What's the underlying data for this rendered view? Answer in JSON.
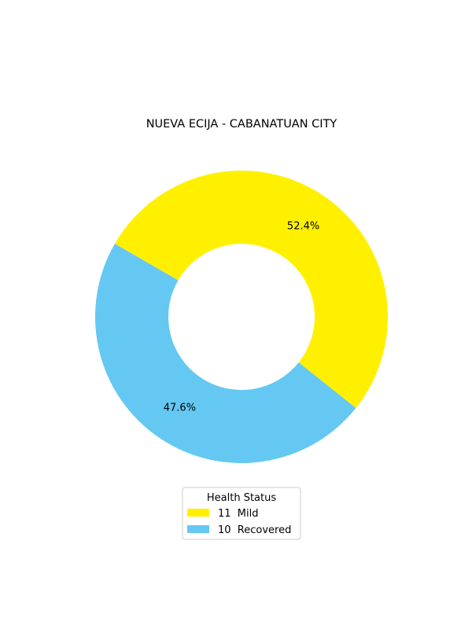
{
  "chart_data": {
    "type": "pie",
    "variant": "donut",
    "title": "NUEVA ECIJA - CABANATUAN CITY",
    "legend_title": "Health Status",
    "legend_position": "bottom-center",
    "slices": [
      {
        "label": "Mild",
        "value": 11,
        "percent_label": "52.4%",
        "color": "#FFF000"
      },
      {
        "label": "Recovered",
        "value": 10,
        "percent_label": "47.6%",
        "color": "#64C8F2"
      }
    ],
    "legend_entries": [
      {
        "count": "11",
        "label": "Mild",
        "text": "11  Mild",
        "color": "#FFF000"
      },
      {
        "count": "10",
        "label": "Recovered",
        "text": "10  Recovered",
        "color": "#64C8F2"
      }
    ]
  }
}
